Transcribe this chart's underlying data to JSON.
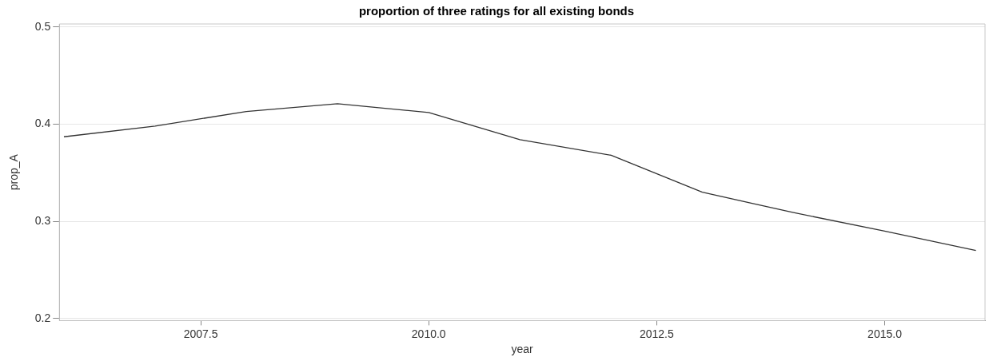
{
  "chart_data": {
    "type": "line",
    "title": "proportion of three ratings for all existing bonds",
    "xlabel": "year",
    "ylabel": "prop_A",
    "x": [
      2006,
      2007,
      2008,
      2009,
      2010,
      2011,
      2012,
      2013,
      2014,
      2015,
      2016
    ],
    "series": [
      {
        "color": "#333333",
        "values": [
          0.387,
          0.398,
          0.413,
          0.421,
          0.412,
          0.384,
          0.368,
          0.33,
          0.309,
          0.29,
          0.27
        ]
      }
    ],
    "xlim": [
      2005.95,
      2016.1
    ],
    "xticks": [
      {
        "value": 2007.5,
        "label": "2007.5"
      },
      {
        "value": 2010,
        "label": "2010.0"
      },
      {
        "value": 2012.5,
        "label": "2012.5"
      },
      {
        "value": 2015,
        "label": "2015.0"
      }
    ],
    "ylim": [
      0.198,
      0.503
    ],
    "yticks": [
      0.2,
      0.3,
      0.4,
      0.5
    ],
    "grid": "y",
    "legend": false,
    "marker": "none",
    "line_style": "solid"
  }
}
